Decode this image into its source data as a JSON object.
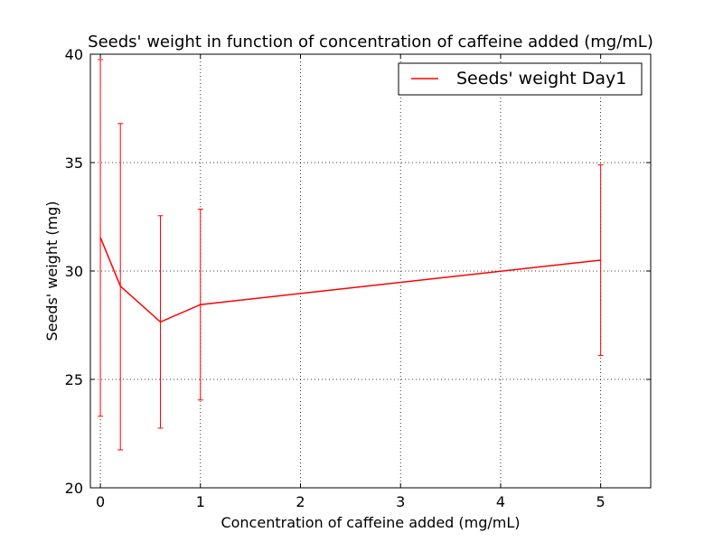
{
  "chart_data": {
    "type": "line",
    "title": "Seeds' weight in function of concentration of caffeine added (mg/mL)",
    "xlabel": "Concentration of caffeine added (mg/mL)",
    "ylabel": "Seeds' weight (mg)",
    "xlim": [
      -0.1,
      5.5
    ],
    "ylim": [
      20,
      40
    ],
    "x_ticks": [
      0,
      1,
      2,
      3,
      4,
      5
    ],
    "y_ticks": [
      20,
      25,
      30,
      35,
      40
    ],
    "x_tick_labels": [
      "0",
      "1",
      "2",
      "3",
      "4",
      "5"
    ],
    "y_tick_labels": [
      "20",
      "25",
      "30",
      "35",
      "40"
    ],
    "grid": true,
    "legend_position": "top-right",
    "series": [
      {
        "name": "Seeds' weight Day1",
        "color": "#ff0000",
        "x": [
          0,
          0.2,
          0.6,
          1,
          5
        ],
        "y": [
          31.55,
          29.3,
          27.65,
          28.45,
          30.5
        ],
        "error_low": [
          23.3,
          21.75,
          22.75,
          24.05,
          26.1
        ],
        "error_high": [
          39.75,
          36.8,
          32.55,
          32.85,
          34.9
        ]
      }
    ]
  }
}
